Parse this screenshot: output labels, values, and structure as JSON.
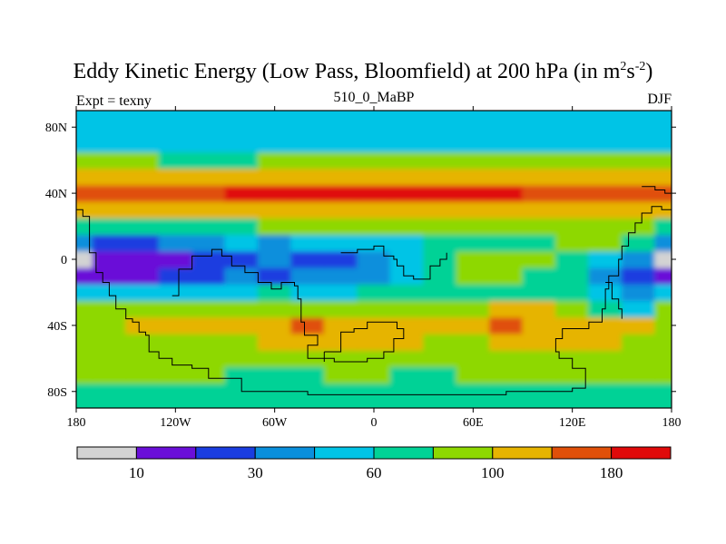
{
  "chart_data": {
    "type": "heatmap",
    "title": "Eddy Kinetic Energy (Low Pass, Bloomfield) at 200 hPa (in m",
    "title_units_exp1": "2",
    "title_units_mid": "s",
    "title_units_exp2": "-2",
    "title_close": ")",
    "subtitle_left": "Expt = texny",
    "subtitle_center": "510_0_MaBP",
    "subtitle_right": "DJF",
    "x_range": [
      -180,
      180
    ],
    "y_range": [
      -90,
      90
    ],
    "x_ticks": [
      {
        "value": -180,
        "label": "180"
      },
      {
        "value": -120,
        "label": "120W"
      },
      {
        "value": -60,
        "label": "60W"
      },
      {
        "value": 0,
        "label": "0"
      },
      {
        "value": 60,
        "label": "60E"
      },
      {
        "value": 120,
        "label": "120E"
      },
      {
        "value": 180,
        "label": "180"
      }
    ],
    "y_ticks": [
      {
        "value": 80,
        "label": "80N"
      },
      {
        "value": 40,
        "label": "40N"
      },
      {
        "value": 0,
        "label": "0"
      },
      {
        "value": -40,
        "label": "40S"
      },
      {
        "value": -80,
        "label": "80S"
      }
    ],
    "contour_levels": [
      10,
      30,
      60,
      100,
      180
    ],
    "colorbar": {
      "colors": [
        "#d3d3d3",
        "#6a0fd8",
        "#1a3de0",
        "#0a8fdc",
        "#00c4e6",
        "#00d296",
        "#8ed800",
        "#e6b400",
        "#e0500a",
        "#e00a0a"
      ],
      "labels": [
        {
          "boundary": 1,
          "text": "10"
        },
        {
          "boundary": 3,
          "text": "30"
        },
        {
          "boundary": 5,
          "text": "60"
        },
        {
          "boundary": 7,
          "text": "100"
        },
        {
          "boundary": 9,
          "text": "180"
        }
      ]
    },
    "field": {
      "description": "approximate contour-level index (0-9) per 20deg longitude x 10deg latitude cell",
      "lons": [
        -180,
        -160,
        -140,
        -120,
        -100,
        -80,
        -60,
        -40,
        -20,
        0,
        20,
        40,
        60,
        80,
        100,
        120,
        140,
        160,
        180
      ],
      "lats": [
        -90,
        -80,
        -70,
        -60,
        -50,
        -40,
        -30,
        -20,
        -10,
        0,
        10,
        20,
        30,
        40,
        50,
        60,
        70,
        80,
        90
      ],
      "levels": [
        [
          5,
          5,
          5,
          5,
          5,
          5,
          5,
          5,
          5,
          5,
          5,
          5,
          5,
          5,
          5,
          5,
          5,
          5,
          5
        ],
        [
          5,
          5,
          5,
          5,
          5,
          5,
          5,
          5,
          5,
          5,
          5,
          5,
          5,
          5,
          5,
          5,
          5,
          5,
          5
        ],
        [
          6,
          6,
          6,
          6,
          6,
          5,
          5,
          5,
          6,
          6,
          5,
          5,
          6,
          6,
          6,
          6,
          6,
          6,
          6
        ],
        [
          6,
          6,
          6,
          6,
          6,
          6,
          6,
          6,
          6,
          6,
          6,
          6,
          6,
          6,
          6,
          6,
          6,
          6,
          6
        ],
        [
          6,
          6,
          6,
          6,
          6,
          6,
          7,
          7,
          7,
          7,
          7,
          6,
          6,
          7,
          7,
          7,
          7,
          6,
          6
        ],
        [
          6,
          6,
          7,
          7,
          7,
          7,
          7,
          8,
          7,
          7,
          7,
          7,
          7,
          8,
          7,
          7,
          7,
          7,
          6
        ],
        [
          6,
          6,
          6,
          6,
          6,
          6,
          6,
          6,
          6,
          6,
          6,
          6,
          6,
          7,
          7,
          6,
          5,
          4,
          6
        ],
        [
          4,
          4,
          4,
          4,
          4,
          4,
          5,
          4,
          4,
          5,
          5,
          5,
          5,
          5,
          5,
          5,
          4,
          3,
          4
        ],
        [
          1,
          1,
          1,
          2,
          2,
          3,
          2,
          3,
          3,
          3,
          4,
          5,
          6,
          6,
          5,
          5,
          3,
          2,
          1
        ],
        [
          0,
          1,
          1,
          1,
          2,
          2,
          3,
          2,
          2,
          3,
          4,
          5,
          6,
          6,
          6,
          5,
          4,
          3,
          0
        ],
        [
          3,
          2,
          2,
          3,
          3,
          4,
          3,
          4,
          4,
          4,
          4,
          5,
          5,
          5,
          5,
          6,
          6,
          5,
          3
        ],
        [
          5,
          5,
          5,
          5,
          5,
          5,
          6,
          6,
          6,
          6,
          6,
          6,
          6,
          6,
          6,
          6,
          6,
          6,
          5
        ],
        [
          7,
          7,
          7,
          7,
          7,
          7,
          7,
          7,
          7,
          7,
          7,
          7,
          7,
          7,
          7,
          7,
          7,
          7,
          7
        ],
        [
          8,
          8,
          8,
          8,
          8,
          9,
          9,
          9,
          9,
          9,
          9,
          9,
          9,
          9,
          8,
          8,
          8,
          8,
          8
        ],
        [
          7,
          7,
          7,
          7,
          7,
          7,
          7,
          7,
          7,
          7,
          7,
          7,
          7,
          7,
          7,
          7,
          7,
          7,
          7
        ],
        [
          6,
          6,
          6,
          5,
          5,
          5,
          6,
          6,
          6,
          6,
          6,
          6,
          6,
          6,
          6,
          6,
          6,
          6,
          6
        ],
        [
          4,
          4,
          4,
          4,
          4,
          4,
          4,
          4,
          4,
          4,
          4,
          4,
          4,
          4,
          4,
          4,
          4,
          4,
          4
        ],
        [
          4,
          4,
          4,
          4,
          4,
          4,
          4,
          4,
          4,
          4,
          4,
          4,
          4,
          4,
          4,
          4,
          4,
          4,
          4
        ],
        [
          4,
          4,
          4,
          4,
          4,
          4,
          4,
          4,
          4,
          4,
          4,
          4,
          4,
          4,
          4,
          4,
          4,
          4,
          4
        ]
      ]
    },
    "coastlines": [
      [
        [
          -180,
          30
        ],
        [
          -176,
          26
        ],
        [
          -172,
          16
        ],
        [
          -172,
          4
        ],
        [
          -168,
          -8
        ],
        [
          -164,
          -14
        ],
        [
          -160,
          -22
        ],
        [
          -156,
          -30
        ],
        [
          -150,
          -36
        ],
        [
          -146,
          -38
        ],
        [
          -142,
          -44
        ],
        [
          -138,
          -46
        ],
        [
          -136,
          -56
        ],
        [
          -130,
          -60
        ],
        [
          -122,
          -64
        ],
        [
          -110,
          -66
        ],
        [
          -100,
          -72
        ],
        [
          -80,
          -80
        ],
        [
          -40,
          -82
        ],
        [
          20,
          -82
        ],
        [
          80,
          -80
        ],
        [
          120,
          -78
        ],
        [
          128,
          -72
        ],
        [
          128,
          -66
        ],
        [
          120,
          -60
        ],
        [
          112,
          -56
        ],
        [
          110,
          -48
        ],
        [
          114,
          -42
        ],
        [
          130,
          -38
        ],
        [
          138,
          -30
        ],
        [
          140,
          -18
        ],
        [
          142,
          -10
        ],
        [
          148,
          0
        ],
        [
          150,
          8
        ],
        [
          154,
          16
        ],
        [
          158,
          22
        ],
        [
          162,
          28
        ],
        [
          168,
          32
        ],
        [
          174,
          30
        ],
        [
          180,
          24
        ]
      ],
      [
        [
          -122,
          -22
        ],
        [
          -118,
          -6
        ],
        [
          -110,
          2
        ],
        [
          -98,
          6
        ],
        [
          -92,
          2
        ],
        [
          -86,
          -4
        ],
        [
          -78,
          -8
        ],
        [
          -70,
          -14
        ],
        [
          -62,
          -18
        ],
        [
          -56,
          -14
        ],
        [
          -48,
          -16
        ],
        [
          -46,
          -24
        ],
        [
          -44,
          -38
        ],
        [
          -42,
          -46
        ],
        [
          -34,
          -52
        ],
        [
          -40,
          -60
        ],
        [
          -30,
          -62
        ]
      ],
      [
        [
          -20,
          4
        ],
        [
          -10,
          6
        ],
        [
          0,
          8
        ],
        [
          6,
          2
        ],
        [
          12,
          0
        ],
        [
          14,
          -4
        ],
        [
          18,
          -10
        ],
        [
          24,
          -12
        ],
        [
          34,
          -4
        ],
        [
          40,
          0
        ],
        [
          44,
          4
        ]
      ],
      [
        [
          -30,
          -56
        ],
        [
          -20,
          -44
        ],
        [
          -12,
          -42
        ],
        [
          -4,
          -38
        ],
        [
          8,
          -38
        ],
        [
          14,
          -42
        ],
        [
          18,
          -48
        ],
        [
          12,
          -56
        ],
        [
          6,
          -60
        ],
        [
          -4,
          -62
        ],
        [
          -14,
          -62
        ],
        [
          -24,
          -60
        ],
        [
          -30,
          -56
        ]
      ],
      [
        [
          140,
          -14
        ],
        [
          144,
          -24
        ],
        [
          148,
          -30
        ],
        [
          150,
          -36
        ]
      ],
      [
        [
          162,
          44
        ],
        [
          170,
          42
        ],
        [
          176,
          40
        ],
        [
          180,
          34
        ]
      ]
    ]
  }
}
